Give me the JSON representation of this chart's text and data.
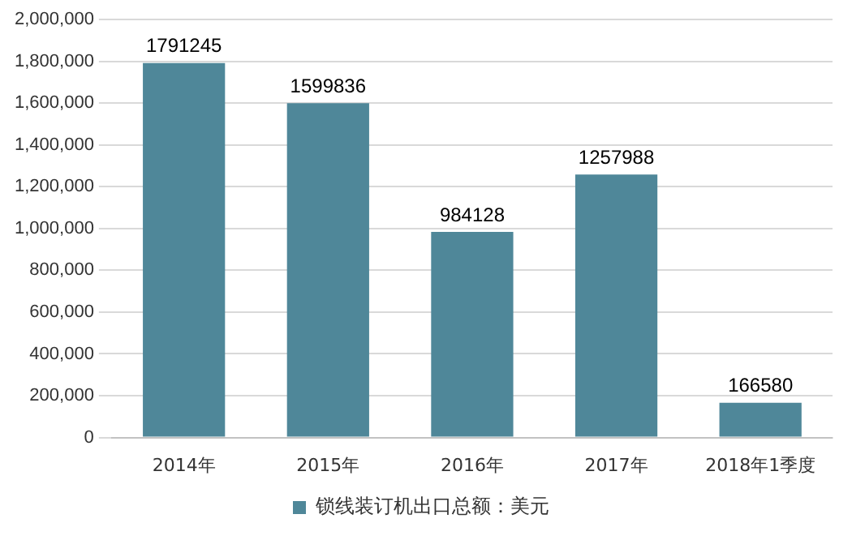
{
  "chart_data": {
    "type": "bar",
    "categories": [
      "2014年",
      "2015年",
      "2016年",
      "2017年",
      "2018年1季度"
    ],
    "series": [
      {
        "name": "锁线装订机出口总额：美元",
        "color": "#4f8799",
        "values": [
          1791245,
          1599836,
          984128,
          1257988,
          166580
        ]
      }
    ],
    "ylim": [
      0,
      2000000
    ],
    "yticks": [
      {
        "value": 0,
        "label": "0"
      },
      {
        "value": 200000,
        "label": "200,000"
      },
      {
        "value": 400000,
        "label": "400,000"
      },
      {
        "value": 600000,
        "label": "600,000"
      },
      {
        "value": 800000,
        "label": "800,000"
      },
      {
        "value": 1000000,
        "label": "1,000,000"
      },
      {
        "value": 1200000,
        "label": "1,200,000"
      },
      {
        "value": 1400000,
        "label": "1,400,000"
      },
      {
        "value": 1600000,
        "label": "1,600,000"
      },
      {
        "value": 1800000,
        "label": "1,800,000"
      },
      {
        "value": 2000000,
        "label": "2,000,000"
      }
    ],
    "grid": "y",
    "legend": "bottom",
    "data_labels": true
  }
}
